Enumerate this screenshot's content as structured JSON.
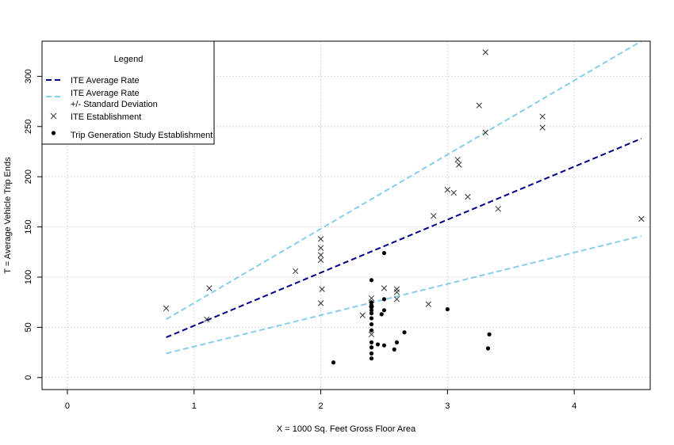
{
  "chart_data": {
    "type": "scatter",
    "xlabel": "X = 1000 Sq. Feet Gross Floor Area",
    "ylabel": "T = Average Vehicle Trip Ends",
    "xlim": [
      -0.2,
      4.6
    ],
    "ylim": [
      -12,
      335
    ],
    "x_ticks": [
      0,
      1,
      2,
      3,
      4
    ],
    "y_ticks": [
      0,
      50,
      100,
      150,
      200,
      250,
      300
    ],
    "grid": true,
    "legend": {
      "title": "Legend",
      "position": "top-left",
      "entries": [
        {
          "label": "ITE Average Rate",
          "style": "dashed-line",
          "color": "#00008b"
        },
        {
          "label": "ITE Average Rate",
          "label2": "+/- Standard Deviation",
          "style": "dashed-line",
          "color": "#87ceeb"
        },
        {
          "label": "ITE Establishment",
          "style": "x-marker",
          "color": "#333333"
        },
        {
          "label": "Trip Generation Study Establishment",
          "style": "dot-marker",
          "color": "#000000"
        }
      ]
    },
    "series": [
      {
        "name": "ITE Average Rate",
        "kind": "line",
        "color": "#00008b",
        "x": [
          0.78,
          4.53
        ],
        "y": [
          40,
          238
        ]
      },
      {
        "name": "ITE Average Rate +/- Standard Deviation",
        "kind": "line",
        "color": "#87ceeb",
        "x": [
          0.78,
          4.53
        ],
        "y": [
          58,
          335
        ]
      },
      {
        "name": "ITE Average Rate +/- Standard Deviation",
        "kind": "line",
        "color": "#87ceeb",
        "x": [
          0.78,
          4.53
        ],
        "y": [
          24,
          141
        ]
      },
      {
        "name": "ITE Establishment",
        "kind": "x-points",
        "color": "#333333",
        "points": [
          [
            0.78,
            69
          ],
          [
            1.1,
            58
          ],
          [
            1.12,
            89
          ],
          [
            1.8,
            106
          ],
          [
            2.0,
            138
          ],
          [
            2.0,
            129
          ],
          [
            2.0,
            122
          ],
          [
            2.0,
            117
          ],
          [
            2.01,
            88
          ],
          [
            2.0,
            74
          ],
          [
            2.33,
            62
          ],
          [
            2.4,
            79
          ],
          [
            2.4,
            73
          ],
          [
            2.4,
            43
          ],
          [
            2.5,
            89
          ],
          [
            2.6,
            88
          ],
          [
            2.6,
            85
          ],
          [
            2.6,
            78
          ],
          [
            2.85,
            73
          ],
          [
            2.89,
            161
          ],
          [
            3.0,
            187
          ],
          [
            3.05,
            184
          ],
          [
            3.08,
            217
          ],
          [
            3.09,
            212
          ],
          [
            3.16,
            180
          ],
          [
            3.25,
            271
          ],
          [
            3.3,
            244
          ],
          [
            3.3,
            324
          ],
          [
            3.4,
            168
          ],
          [
            3.75,
            260
          ],
          [
            3.75,
            249
          ],
          [
            4.53,
            158
          ]
        ]
      },
      {
        "name": "Trip Generation Study Establishment",
        "kind": "dot-points",
        "color": "#000000",
        "points": [
          [
            2.1,
            15
          ],
          [
            2.4,
            97
          ],
          [
            2.4,
            75
          ],
          [
            2.4,
            72
          ],
          [
            2.4,
            70
          ],
          [
            2.4,
            67
          ],
          [
            2.4,
            64
          ],
          [
            2.4,
            59
          ],
          [
            2.4,
            53
          ],
          [
            2.4,
            47
          ],
          [
            2.4,
            35
          ],
          [
            2.4,
            30
          ],
          [
            2.4,
            24
          ],
          [
            2.4,
            19
          ],
          [
            2.45,
            33
          ],
          [
            2.48,
            63
          ],
          [
            2.5,
            124
          ],
          [
            2.5,
            78
          ],
          [
            2.5,
            67
          ],
          [
            2.5,
            32
          ],
          [
            2.58,
            28
          ],
          [
            2.6,
            35
          ],
          [
            2.66,
            45
          ],
          [
            3.0,
            68
          ],
          [
            3.32,
            29
          ],
          [
            3.33,
            43
          ]
        ]
      }
    ]
  }
}
